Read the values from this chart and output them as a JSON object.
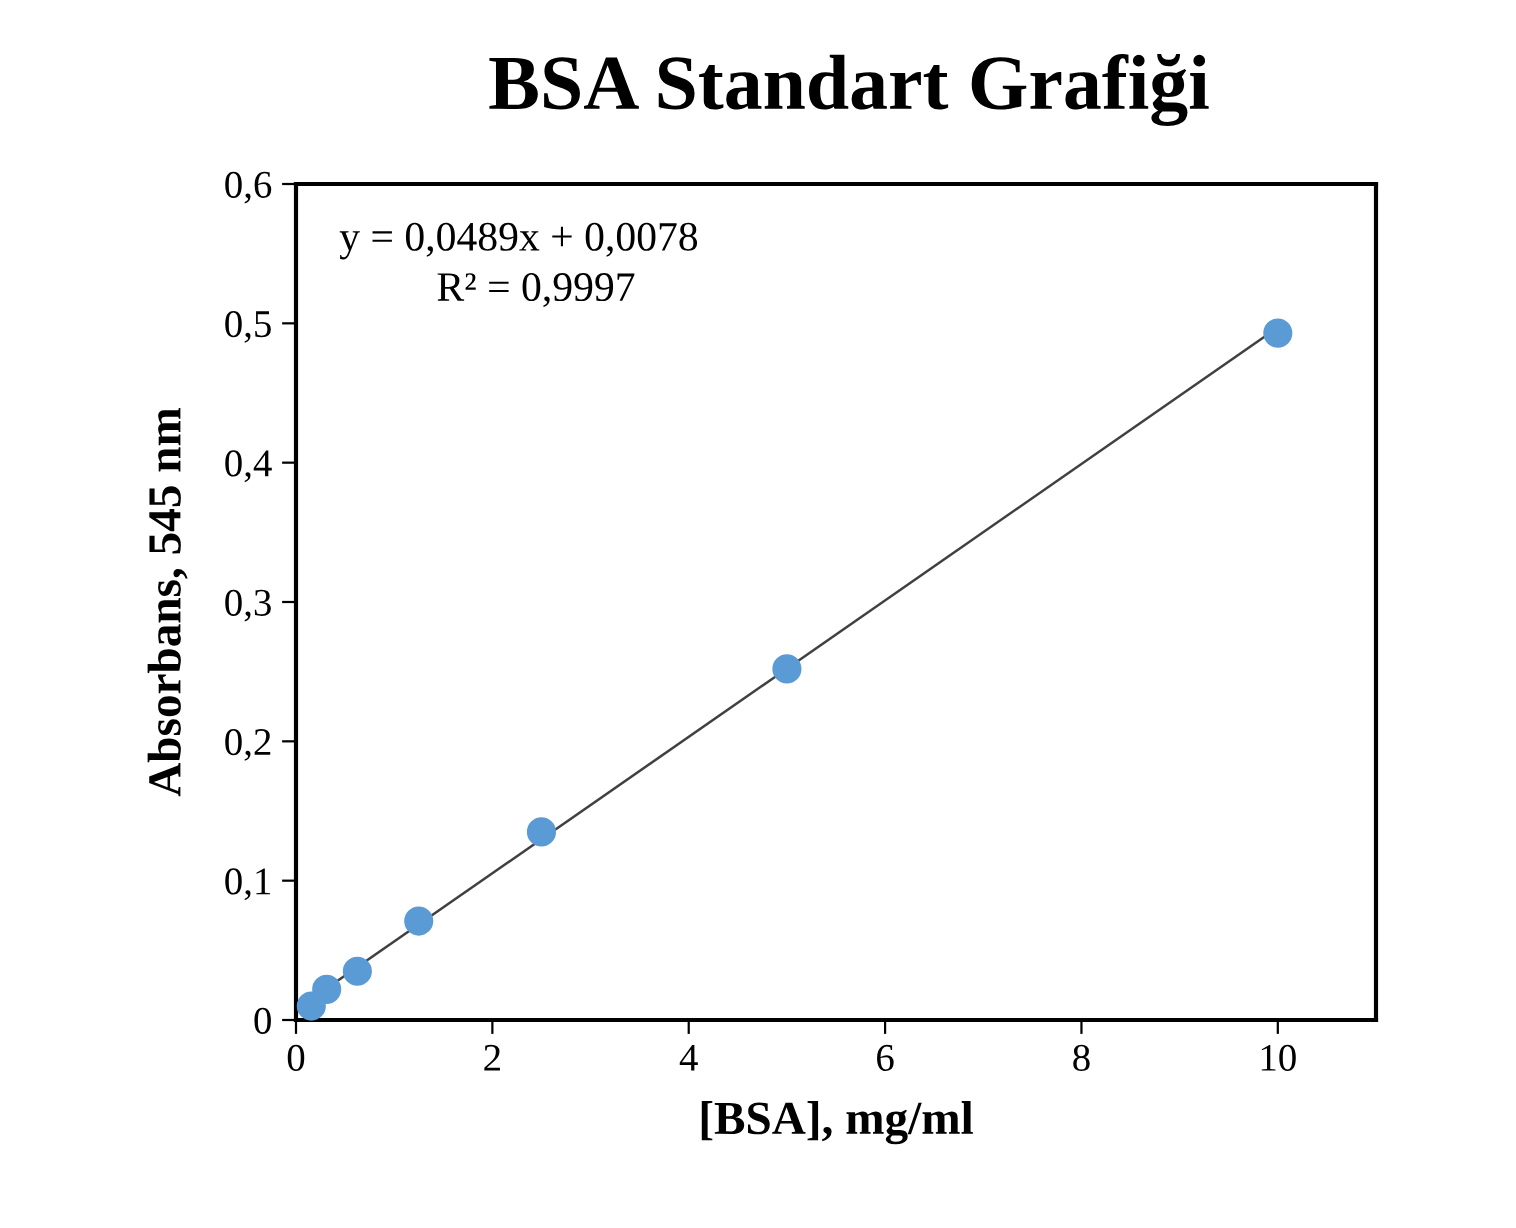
{
  "chart_data": {
    "type": "scatter",
    "title": "BSA Standart Grafiği",
    "xlabel": "[BSA], mg/ml",
    "ylabel": "Absorbans, 545 nm",
    "series": [
      {
        "color": "#5b9bd5",
        "marker": "circle",
        "x": [
          0.156,
          0.3125,
          0.625,
          1.25,
          2.5,
          5,
          10
        ],
        "values": [
          0.01,
          0.022,
          0.035,
          0.071,
          0.135,
          0.252,
          0.493
        ]
      },
      {
        "type": "line",
        "color": "#404040",
        "x": [
          0.156,
          10
        ],
        "values": [
          0.015,
          0.497
        ],
        "marker": "none"
      }
    ],
    "annotations": [
      "y = 0,0489x + 0,0078",
      "R² = 0,9997"
    ],
    "xlim": [
      0,
      11
    ],
    "xticks": [
      0,
      2,
      4,
      6,
      8,
      10
    ],
    "ylim": [
      0,
      0.6
    ],
    "yticks": [
      0,
      {
        "value": 0.1,
        "label": "0,1"
      },
      {
        "value": 0.2,
        "label": "0,2"
      },
      {
        "value": 0.3,
        "label": "0,3"
      },
      {
        "value": 0.4,
        "label": "0,4"
      },
      {
        "value": 0.5,
        "label": "0,5"
      },
      {
        "value": 0.6,
        "label": "0,6"
      }
    ],
    "grid": false,
    "legend": false
  }
}
